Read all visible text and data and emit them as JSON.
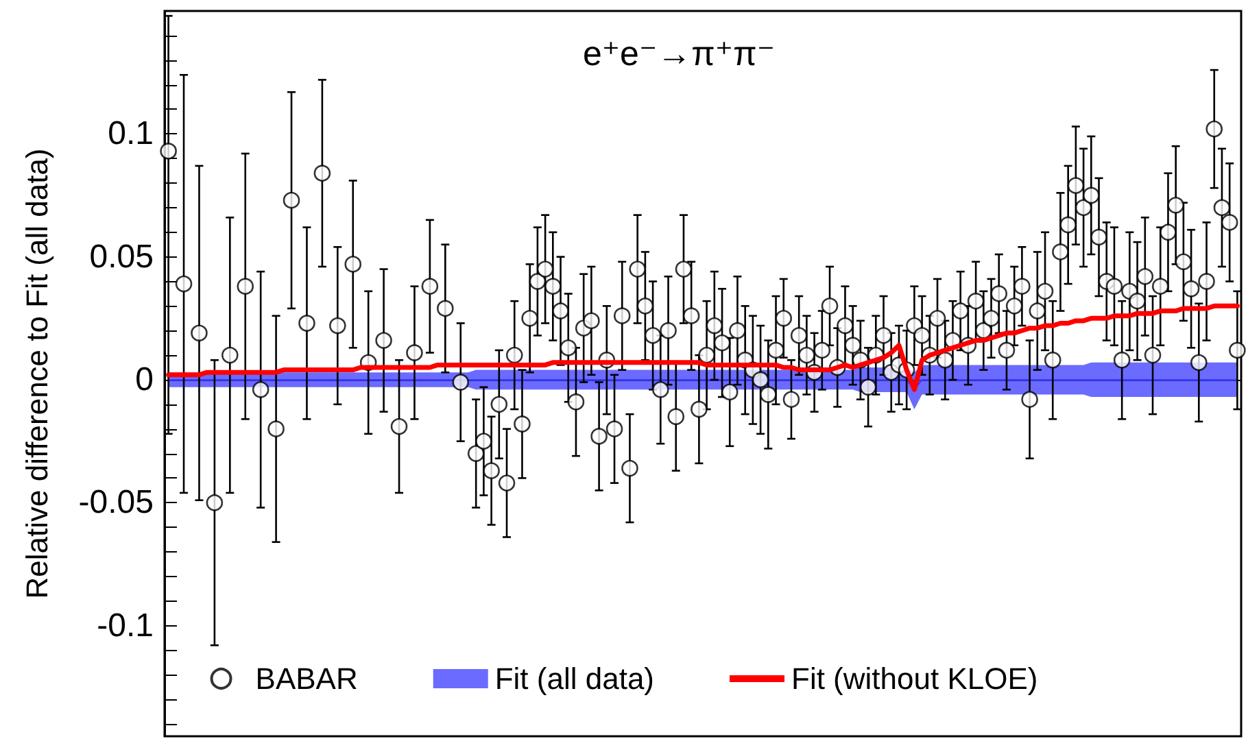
{
  "chart_data": {
    "type": "scatter",
    "title": "e⁺e⁻→π⁺π⁻",
    "ylabel": "Relative difference to Fit (all data)",
    "categories": [
      null,
      null,
      null,
      null,
      null,
      null,
      null,
      null,
      null,
      null,
      null,
      null,
      null,
      null,
      null,
      null,
      null,
      null,
      null,
      null,
      null,
      null,
      null,
      null,
      null,
      null,
      null,
      null,
      null,
      null,
      null,
      null,
      null,
      null,
      null,
      null,
      null,
      null,
      null,
      null,
      null,
      null,
      null,
      null,
      null,
      null,
      null,
      null,
      null,
      null,
      null,
      null,
      null,
      null,
      null,
      null,
      null,
      null,
      null,
      null,
      null,
      null,
      null,
      null,
      null,
      null,
      null,
      null,
      null,
      null,
      null,
      null,
      null,
      null,
      null,
      null,
      null,
      null,
      null,
      null,
      null,
      null,
      null,
      null,
      null,
      null,
      null,
      null,
      null,
      null,
      null,
      null,
      null,
      null,
      null,
      null,
      null,
      null,
      null,
      null,
      null,
      null,
      null,
      null,
      null,
      null,
      null,
      null,
      null,
      null,
      null,
      null,
      null,
      null,
      null,
      null,
      null,
      null,
      null,
      null,
      null,
      null,
      null,
      null,
      null,
      null,
      null,
      null,
      null,
      null,
      null,
      null,
      null,
      null,
      null,
      null,
      null,
      null,
      null,
      null
    ],
    "series": [
      {
        "name": "BABAR",
        "color": "#000000",
        "marker": "circle",
        "values": [
          0.093,
          null,
          0.039,
          null,
          0.019,
          null,
          -0.05,
          null,
          0.01,
          null,
          0.038,
          null,
          -0.004,
          null,
          -0.02,
          null,
          0.073,
          null,
          0.023,
          null,
          0.084,
          null,
          0.022,
          null,
          0.047,
          null,
          0.007,
          null,
          0.016,
          null,
          -0.019,
          null,
          0.011,
          null,
          0.038,
          null,
          0.029,
          null,
          -0.001,
          null,
          -0.03,
          -0.025,
          -0.037,
          -0.01,
          -0.042,
          0.01,
          -0.018,
          0.025,
          0.04,
          0.045,
          0.038,
          0.028,
          0.013,
          -0.009,
          0.021,
          0.024,
          -0.023,
          0.008,
          -0.02,
          0.026,
          -0.036,
          0.045,
          0.03,
          0.018,
          -0.004,
          0.02,
          -0.015,
          0.045,
          0.026,
          -0.012,
          0.01,
          0.022,
          0.015,
          -0.005,
          0.02,
          0.008,
          0.004,
          0.0,
          -0.006,
          0.012,
          0.025,
          -0.008,
          0.018,
          0.01,
          0.003,
          0.012,
          0.03,
          0.005,
          0.022,
          0.014,
          0.008,
          -0.003,
          0.01,
          0.018,
          0.003,
          0.006,
          0.004,
          0.022,
          0.018,
          0.01,
          0.025,
          0.008,
          0.016,
          0.028,
          0.014,
          0.032,
          0.02,
          0.025,
          0.035,
          0.012,
          0.03,
          0.038,
          -0.008,
          0.028,
          0.036,
          0.008,
          0.052,
          0.063,
          0.079,
          0.07,
          0.075,
          0.058,
          0.04,
          0.038,
          0.008,
          0.036,
          0.032,
          0.042,
          0.01,
          0.038,
          0.06,
          0.071,
          0.048,
          0.037,
          0.007,
          0.04,
          0.102,
          0.07,
          0.064,
          0.012
        ],
        "errors": [
          [
            -0.022,
            0.148
          ],
          null,
          0.085,
          null,
          0.068,
          null,
          0.058,
          null,
          0.056,
          null,
          0.054,
          null,
          0.048,
          null,
          0.046,
          null,
          0.044,
          null,
          0.039,
          null,
          0.038,
          null,
          0.032,
          null,
          0.034,
          null,
          0.029,
          null,
          0.029,
          null,
          0.027,
          null,
          0.027,
          null,
          0.027,
          null,
          0.026,
          null,
          0.024,
          null,
          0.022,
          0.022,
          0.022,
          0.022,
          0.022,
          0.022,
          0.022,
          0.022,
          0.022,
          0.022,
          0.022,
          0.022,
          0.022,
          0.022,
          0.022,
          0.022,
          0.022,
          0.022,
          0.022,
          0.022,
          0.022,
          0.022,
          0.022,
          0.022,
          0.022,
          0.022,
          0.022,
          0.022,
          0.022,
          0.022,
          0.022,
          0.022,
          0.022,
          0.022,
          0.022,
          0.022,
          0.022,
          0.022,
          0.022,
          0.022,
          0.016,
          0.016,
          0.016,
          0.016,
          0.016,
          0.016,
          0.016,
          0.016,
          0.016,
          0.016,
          0.016,
          0.016,
          0.016,
          0.016,
          0.016,
          0.016,
          0.016,
          0.016,
          0.016,
          0.016,
          0.016,
          0.016,
          0.016,
          0.016,
          0.016,
          0.016,
          0.016,
          0.016,
          0.016,
          0.016,
          0.016,
          0.016,
          0.024,
          0.024,
          0.024,
          0.024,
          0.024,
          0.024,
          0.024,
          0.024,
          0.024,
          0.024,
          0.024,
          0.024,
          0.024,
          0.024,
          0.024,
          0.024,
          0.024,
          0.024,
          0.024,
          0.024,
          0.024,
          0.024,
          0.024,
          0.024,
          0.024,
          0.024,
          0.024,
          0.024
        ]
      },
      {
        "name": "Fit (all data)",
        "type": "line",
        "color": "#3a3aff",
        "values": [
          0,
          0,
          0,
          0,
          0,
          0,
          0,
          0,
          0,
          0,
          0,
          0,
          0,
          0,
          0,
          0,
          0,
          0,
          0,
          0,
          0,
          0,
          0,
          0,
          0,
          0,
          0,
          0,
          0,
          0,
          0,
          0,
          0,
          0,
          0,
          0,
          0,
          0,
          0,
          0,
          0,
          0,
          0,
          0,
          0,
          0,
          0,
          0,
          0,
          0,
          0,
          0,
          0,
          0,
          0,
          0,
          0,
          0,
          0,
          0,
          0,
          0,
          0,
          0,
          0,
          0,
          0,
          0,
          0,
          0,
          0,
          0,
          0,
          0,
          0,
          0,
          0,
          0,
          0,
          0,
          0,
          0,
          0,
          0,
          0,
          0,
          0,
          0,
          0,
          0,
          0,
          0,
          0,
          0,
          0,
          0,
          0,
          -0.004,
          0,
          0,
          0,
          0,
          0,
          0,
          0,
          0,
          0,
          0,
          0,
          0,
          0,
          0,
          0,
          0,
          0,
          0,
          0,
          0,
          0,
          0,
          0,
          0,
          0,
          0,
          0,
          0,
          0,
          0,
          0,
          0,
          0,
          0,
          0,
          0,
          0,
          0,
          0,
          0,
          0,
          0
        ],
        "lower": [
          -0.003,
          -0.003,
          -0.003,
          -0.003,
          -0.003,
          -0.003,
          -0.003,
          -0.003,
          -0.003,
          -0.003,
          -0.003,
          -0.003,
          -0.003,
          -0.003,
          -0.003,
          -0.003,
          -0.003,
          -0.003,
          -0.003,
          -0.003,
          -0.003,
          -0.003,
          -0.003,
          -0.003,
          -0.003,
          -0.003,
          -0.003,
          -0.003,
          -0.003,
          -0.003,
          -0.003,
          -0.003,
          -0.003,
          -0.003,
          -0.003,
          -0.003,
          -0.003,
          -0.003,
          -0.003,
          -0.003,
          -0.004,
          -0.004,
          -0.004,
          -0.004,
          -0.004,
          -0.004,
          -0.004,
          -0.004,
          -0.004,
          -0.004,
          -0.004,
          -0.004,
          -0.004,
          -0.004,
          -0.004,
          -0.004,
          -0.004,
          -0.004,
          -0.004,
          -0.004,
          -0.004,
          -0.004,
          -0.004,
          -0.004,
          -0.004,
          -0.004,
          -0.004,
          -0.004,
          -0.004,
          -0.004,
          -0.004,
          -0.004,
          -0.004,
          -0.004,
          -0.004,
          -0.004,
          -0.004,
          -0.004,
          -0.004,
          -0.004,
          -0.004,
          -0.004,
          -0.004,
          -0.004,
          -0.004,
          -0.004,
          -0.004,
          -0.004,
          -0.004,
          -0.004,
          -0.005,
          -0.005,
          -0.005,
          -0.005,
          -0.005,
          -0.005,
          -0.005,
          -0.012,
          -0.006,
          -0.006,
          -0.006,
          -0.006,
          -0.006,
          -0.006,
          -0.006,
          -0.006,
          -0.006,
          -0.006,
          -0.006,
          -0.006,
          -0.006,
          -0.006,
          -0.006,
          -0.006,
          -0.006,
          -0.006,
          -0.006,
          -0.006,
          -0.006,
          -0.006,
          -0.007,
          -0.007,
          -0.007,
          -0.007,
          -0.007,
          -0.007,
          -0.007,
          -0.007,
          -0.007,
          -0.007,
          -0.007,
          -0.007,
          -0.007,
          -0.007,
          -0.007,
          -0.007,
          -0.007,
          -0.007,
          -0.007,
          -0.007
        ],
        "upper": [
          0.003,
          0.003,
          0.003,
          0.003,
          0.003,
          0.003,
          0.003,
          0.003,
          0.003,
          0.003,
          0.003,
          0.003,
          0.003,
          0.003,
          0.003,
          0.003,
          0.003,
          0.003,
          0.003,
          0.003,
          0.003,
          0.003,
          0.003,
          0.003,
          0.003,
          0.003,
          0.003,
          0.003,
          0.003,
          0.003,
          0.003,
          0.003,
          0.003,
          0.003,
          0.003,
          0.003,
          0.003,
          0.003,
          0.003,
          0.003,
          0.004,
          0.004,
          0.004,
          0.004,
          0.004,
          0.004,
          0.004,
          0.004,
          0.004,
          0.004,
          0.004,
          0.004,
          0.004,
          0.004,
          0.004,
          0.004,
          0.004,
          0.004,
          0.004,
          0.004,
          0.004,
          0.004,
          0.004,
          0.004,
          0.004,
          0.004,
          0.004,
          0.004,
          0.004,
          0.004,
          0.004,
          0.004,
          0.004,
          0.004,
          0.004,
          0.004,
          0.004,
          0.004,
          0.004,
          0.004,
          0.004,
          0.004,
          0.004,
          0.004,
          0.004,
          0.004,
          0.004,
          0.004,
          0.004,
          0.004,
          0.005,
          0.005,
          0.005,
          0.005,
          0.005,
          0.005,
          0.005,
          0.003,
          0.006,
          0.006,
          0.006,
          0.006,
          0.006,
          0.006,
          0.006,
          0.006,
          0.006,
          0.006,
          0.006,
          0.006,
          0.006,
          0.006,
          0.006,
          0.006,
          0.006,
          0.006,
          0.006,
          0.006,
          0.006,
          0.006,
          0.007,
          0.007,
          0.007,
          0.007,
          0.007,
          0.007,
          0.007,
          0.007,
          0.007,
          0.007,
          0.007,
          0.007,
          0.007,
          0.007,
          0.007,
          0.007,
          0.007,
          0.007,
          0.007,
          0.007
        ]
      },
      {
        "name": "Fit (without KLOE)",
        "type": "line",
        "color": "#ff0000",
        "line_style": "solid",
        "values": [
          0.002,
          0.002,
          0.002,
          0.002,
          0.002,
          0.003,
          0.003,
          0.003,
          0.003,
          0.003,
          0.003,
          0.003,
          0.003,
          0.003,
          0.003,
          0.004,
          0.004,
          0.004,
          0.004,
          0.004,
          0.004,
          0.004,
          0.004,
          0.004,
          0.004,
          0.005,
          0.005,
          0.005,
          0.005,
          0.005,
          0.005,
          0.005,
          0.005,
          0.005,
          0.005,
          0.006,
          0.006,
          0.006,
          0.006,
          0.006,
          0.006,
          0.006,
          0.006,
          0.006,
          0.006,
          0.006,
          0.006,
          0.006,
          0.006,
          0.006,
          0.007,
          0.007,
          0.007,
          0.007,
          0.007,
          0.007,
          0.007,
          0.007,
          0.007,
          0.007,
          0.007,
          0.007,
          0.007,
          0.007,
          0.007,
          0.007,
          0.007,
          0.007,
          0.007,
          0.007,
          0.006,
          0.006,
          0.006,
          0.006,
          0.006,
          0.006,
          0.006,
          0.006,
          0.006,
          0.006,
          0.005,
          0.005,
          0.004,
          0.004,
          0.004,
          0.004,
          0.004,
          0.005,
          0.006,
          0.005,
          0.006,
          0.007,
          0.008,
          0.009,
          0.011,
          0.014,
          0.004,
          -0.004,
          0.008,
          0.01,
          0.011,
          0.012,
          0.013,
          0.014,
          0.015,
          0.016,
          0.016,
          0.017,
          0.018,
          0.019,
          0.019,
          0.02,
          0.021,
          0.021,
          0.022,
          0.022,
          0.023,
          0.023,
          0.024,
          0.024,
          0.025,
          0.025,
          0.025,
          0.026,
          0.026,
          0.026,
          0.027,
          0.027,
          0.027,
          0.028,
          0.028,
          0.028,
          0.029,
          0.029,
          0.029,
          0.029,
          0.03,
          0.03,
          0.03,
          0.03
        ]
      }
    ],
    "ylim": [
      -0.145,
      0.15
    ],
    "yticks": [
      {
        "value": -0.14,
        "label": null
      },
      {
        "value": -0.13,
        "label": null
      },
      {
        "value": -0.12,
        "label": null
      },
      {
        "value": -0.11,
        "label": null
      },
      -0.1,
      {
        "value": -0.09,
        "label": null
      },
      {
        "value": -0.08,
        "label": null
      },
      {
        "value": -0.07,
        "label": null
      },
      {
        "value": -0.06,
        "label": null
      },
      -0.05,
      {
        "value": -0.04,
        "label": null
      },
      {
        "value": -0.03,
        "label": null
      },
      {
        "value": -0.02,
        "label": null
      },
      {
        "value": -0.01,
        "label": null
      },
      0,
      {
        "value": 0.01,
        "label": null
      },
      {
        "value": 0.02,
        "label": null
      },
      {
        "value": 0.03,
        "label": null
      },
      {
        "value": 0.04,
        "label": null
      },
      0.05,
      {
        "value": 0.06,
        "label": null
      },
      {
        "value": 0.07,
        "label": null
      },
      {
        "value": 0.08,
        "label": null
      },
      {
        "value": 0.09,
        "label": null
      },
      0.1,
      {
        "value": 0.11,
        "label": null
      },
      {
        "value": 0.12,
        "label": null
      },
      {
        "value": 0.13,
        "label": null
      },
      {
        "value": 0.14,
        "label": null
      }
    ],
    "legend": "bottom",
    "tick_labels": "y"
  }
}
